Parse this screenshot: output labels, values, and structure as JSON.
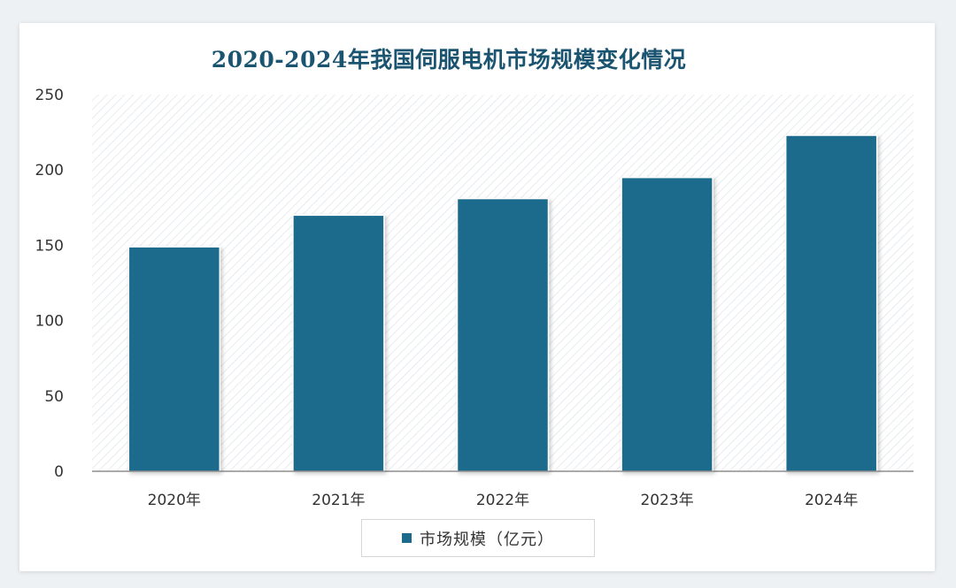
{
  "chart_data": {
    "type": "bar",
    "title": "2020-2024年我国伺服电机市场规模变化情况",
    "categories": [
      "2020年",
      "2021年",
      "2022年",
      "2023年",
      "2024年"
    ],
    "series": [
      {
        "name": "市场规模（亿元）",
        "values": [
          149,
          170,
          181,
          195,
          223
        ]
      }
    ],
    "yticks": [
      "0",
      "50",
      "100",
      "150",
      "200",
      "250"
    ],
    "ylim": [
      0,
      250
    ],
    "legend_position": "bottom",
    "bar_color": "#1c6a8c",
    "gridlines": false,
    "plot_background": "hatched"
  }
}
